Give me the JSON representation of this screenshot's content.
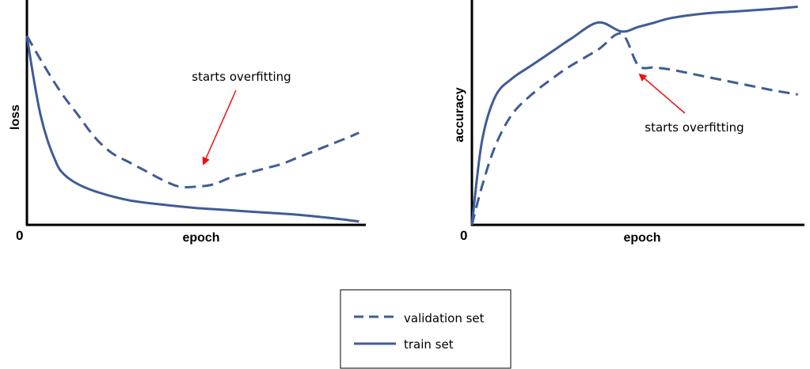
{
  "chart_data": [
    {
      "type": "line",
      "xlabel": "epoch",
      "ylabel": "loss",
      "origin_label": "0",
      "xlim": [
        0,
        100
      ],
      "ylim": [
        0,
        100
      ],
      "grid": false,
      "series": [
        {
          "name": "validation set",
          "style": "dashed",
          "x": [
            0,
            5,
            10,
            15,
            20,
            25,
            30,
            35,
            40,
            45,
            50,
            55,
            60,
            65,
            70,
            75,
            80,
            85,
            90,
            95,
            98
          ],
          "y": [
            84,
            71,
            59,
            49,
            39,
            32,
            28,
            24,
            20,
            17,
            17,
            18,
            21,
            23,
            25,
            27,
            30,
            33,
            36,
            39,
            41
          ]
        },
        {
          "name": "train set",
          "style": "solid",
          "x": [
            0,
            2,
            4,
            6,
            8,
            10,
            14,
            20,
            30,
            40,
            50,
            60,
            70,
            80,
            90,
            98
          ],
          "y": [
            84,
            65,
            49,
            38,
            30,
            24,
            19,
            15,
            11,
            9,
            7.5,
            6.5,
            5.5,
            4.5,
            3,
            1.5
          ]
        }
      ],
      "annotations": [
        {
          "text": "starts overfitting",
          "target": [
            50,
            17
          ]
        }
      ]
    },
    {
      "type": "line",
      "xlabel": "epoch",
      "ylabel": "accuracy",
      "origin_label": "0",
      "xlim": [
        0,
        100
      ],
      "ylim": [
        0,
        100
      ],
      "grid": false,
      "series": [
        {
          "name": "validation set",
          "style": "dashed",
          "x": [
            0,
            3,
            7,
            12,
            18,
            25,
            30,
            38,
            45,
            50,
            55,
            60,
            70,
            80,
            90,
            98
          ],
          "y": [
            0,
            17,
            35,
            49,
            58,
            66,
            71,
            78,
            85,
            71,
            70,
            69,
            66,
            63,
            60,
            58
          ]
        },
        {
          "name": "train set",
          "style": "solid",
          "x": [
            0,
            3,
            7,
            12,
            18,
            25,
            30,
            38,
            45,
            50,
            55,
            60,
            70,
            80,
            90,
            98
          ],
          "y": [
            0,
            37,
            57,
            65,
            71,
            78,
            83,
            90,
            86,
            88,
            90,
            92,
            94,
            95,
            96,
            97
          ]
        }
      ],
      "annotations": [
        {
          "text": "starts overfitting",
          "target": [
            50,
            71
          ]
        }
      ]
    }
  ],
  "legend": {
    "items": [
      {
        "label": "validation set",
        "style": "dashed"
      },
      {
        "label": "train set",
        "style": "solid"
      }
    ]
  },
  "colors": {
    "line": "#3f5c97",
    "arrow": "#ee1111",
    "axis": "#000000"
  }
}
